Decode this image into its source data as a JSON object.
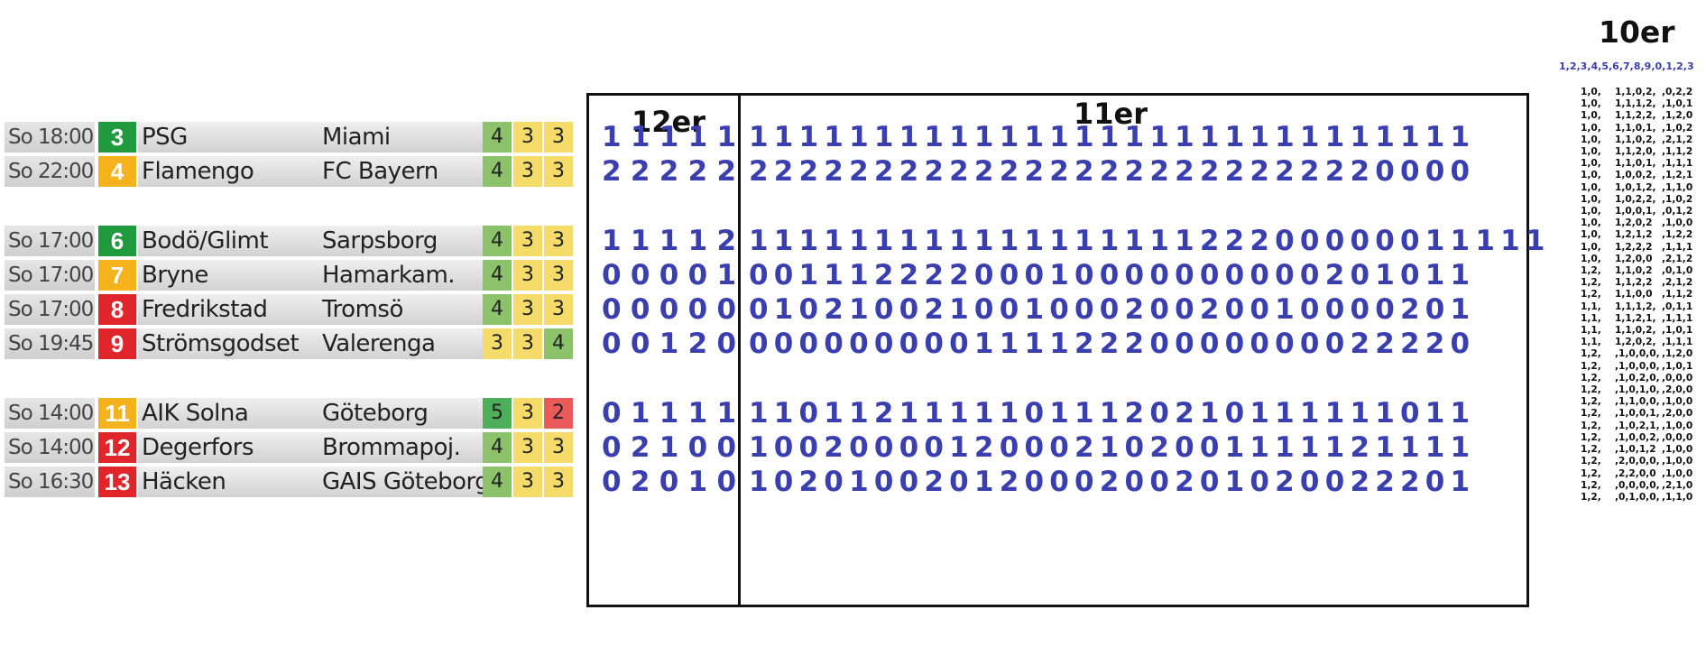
{
  "matches": [
    {
      "time": "So 18:00",
      "num": "3",
      "num_color": "#1f9a3c",
      "home": "PSG",
      "away": "Miami",
      "p1": "4",
      "p2": "3",
      "p3": "3",
      "c1": "#8cc36a",
      "c2": "#f5dc6a",
      "c3": "#f5dc6a",
      "d12": "11111",
      "d11": "11111111111111111111111111111"
    },
    {
      "time": "So 22:00",
      "num": "4",
      "num_color": "#f4b21c",
      "home": "Flamengo",
      "away": "FC Bayern",
      "p1": "4",
      "p2": "3",
      "p3": "3",
      "c1": "#8cc36a",
      "c2": "#f5dc6a",
      "c3": "#f5dc6a",
      "d12": "22222",
      "d11": "22222222222222222222222220000"
    },
    {
      "time": "So 17:00",
      "num": "6",
      "num_color": "#1f9a3c",
      "home": "Bodö/Glimt",
      "away": "Sarpsborg",
      "p1": "4",
      "p2": "3",
      "p3": "3",
      "c1": "#8cc36a",
      "c2": "#f5dc6a",
      "c3": "#f5dc6a",
      "d12": "11112",
      "d11": "11111111111111111122200000011111"
    },
    {
      "time": "So 17:00",
      "num": "7",
      "num_color": "#f4b21c",
      "home": "Bryne",
      "away": "Hamarkam.",
      "p1": "4",
      "p2": "3",
      "p3": "3",
      "c1": "#8cc36a",
      "c2": "#f5dc6a",
      "c3": "#f5dc6a",
      "d12": "00001",
      "d11": "00111222200010000000000201011"
    },
    {
      "time": "So 17:00",
      "num": "8",
      "num_color": "#e0262b",
      "home": "Fredrikstad",
      "away": "Tromsö",
      "p1": "4",
      "p2": "3",
      "p3": "3",
      "c1": "#8cc36a",
      "c2": "#f5dc6a",
      "c3": "#f5dc6a",
      "d12": "00000",
      "d11": "01021002100100020020010000201"
    },
    {
      "time": "So 19:45",
      "num": "9",
      "num_color": "#e0262b",
      "home": "Strömsgodset",
      "away": "Valerenga",
      "p1": "3",
      "p2": "3",
      "p3": "4",
      "c1": "#f5dc6a",
      "c2": "#f5dc6a",
      "c3": "#8cc36a",
      "d12": "00120",
      "d11": "00000000011112220000000022220"
    },
    {
      "time": "So 14:00",
      "num": "11",
      "num_color": "#f4b21c",
      "home": "AIK Solna",
      "away": "Göteborg",
      "p1": "5",
      "p2": "3",
      "p3": "2",
      "c1": "#4fae5a",
      "c2": "#f5dc6a",
      "c3": "#ea5a5a",
      "d12": "01111",
      "d11": "11011211111011120210111111011"
    },
    {
      "time": "So 14:00",
      "num": "12",
      "num_color": "#e0262b",
      "home": "Degerfors",
      "away": "Brommapoj.",
      "p1": "4",
      "p2": "3",
      "p3": "3",
      "c1": "#8cc36a",
      "c2": "#f5dc6a",
      "c3": "#f5dc6a",
      "d12": "02100",
      "d11": "10020000120002102001111121111"
    },
    {
      "time": "So 16:30",
      "num": "13",
      "num_color": "#e0262b",
      "home": "Häcken",
      "away": "GAIS Göteborg",
      "p1": "4",
      "p2": "3",
      "p3": "3",
      "c1": "#8cc36a",
      "c2": "#f5dc6a",
      "c3": "#f5dc6a",
      "d12": "02010",
      "d11": "10201002012000200201020022201"
    }
  ],
  "labels": {
    "twelve": "12er",
    "eleven": "11er",
    "ten": "10er"
  },
  "ten_header": "1,2,3,4,5,6,7,8,9,0,1,2,3",
  "ten_rows": [
    [
      "1,0,",
      "1,1,0,2,",
      ",0,2,2"
    ],
    [
      "1,0,",
      "1,1,1,2,",
      ",1,0,1"
    ],
    [
      "1,0,",
      "1,1,2,2,",
      ",1,2,0"
    ],
    [
      "1,0,",
      "1,1,0,1,",
      ",1,0,2"
    ],
    [
      "1,0,",
      "1,1,0,2,",
      ",2,1,2"
    ],
    [
      "1,0,",
      "1,1,2,0,",
      ",1,1,2"
    ],
    [
      "1,0,",
      "1,1,0,1,",
      ",1,1,1"
    ],
    [
      "1,0,",
      "1,0,0,2,",
      ",1,2,1"
    ],
    [
      "1,0,",
      "1,0,1,2,",
      ",1,1,0"
    ],
    [
      "1,0,",
      "1,0,2,2,",
      ",1,0,2"
    ],
    [
      "1,0,",
      "1,0,0,1,",
      ",0,1,2"
    ],
    [
      "1,0,",
      "1,2,0,2",
      ",1,0,0"
    ],
    [
      "1,0,",
      "1,2,1,2",
      ",1,2,2"
    ],
    [
      "1,0,",
      "1,2,2,2",
      ",1,1,1"
    ],
    [
      "1,0,",
      "1,2,0,0",
      ",2,1,2"
    ],
    [
      "1,2,",
      "1,1,0,2",
      ",0,1,0"
    ],
    [
      "1,2,",
      "1,1,2,2",
      ",2,1,2"
    ],
    [
      "1,2,",
      "1,1,0,0",
      ",1,1,2"
    ],
    [
      "1,1,",
      "1,1,1,2,",
      ",0,1,1"
    ],
    [
      "1,1,",
      "1,1,2,1,",
      ",1,1,1"
    ],
    [
      "1,1,",
      "1,1,0,2,",
      ",1,0,1"
    ],
    [
      "1,1,",
      "1,2,0,2,",
      ",1,1,1"
    ],
    [
      "1,2,",
      ",1,0,0,0,",
      ",1,2,0"
    ],
    [
      "1,2,",
      ",1,0,0,0,",
      ",1,0,1"
    ],
    [
      "1,2,",
      ",1,0,2,0,",
      ",0,0,0"
    ],
    [
      "1,2,",
      ",1,0,1,0,",
      ",2,0,0"
    ],
    [
      "1,2,",
      ",1,1,0,0,",
      ",1,0,0"
    ],
    [
      "1,2,",
      ",1,0,0,1,",
      ",2,0,0"
    ],
    [
      "1,2,",
      ",1,0,2,1,",
      ",1,0,0"
    ],
    [
      "1,2,",
      ",1,0,0,2,",
      ",0,0,0"
    ],
    [
      "1,2,",
      ",1,0,1,2",
      ",1,0,0"
    ],
    [
      "1,2,",
      ",2,0,0,0,",
      ",1,0,0"
    ],
    [
      "1,2,",
      ",2,2,0,0",
      ",1,0,0"
    ],
    [
      "1,2,",
      ",0,0,0,0,",
      ",2,1,0"
    ],
    [
      "1,2,",
      ",0,1,0,0,",
      ",1,1,0"
    ]
  ]
}
